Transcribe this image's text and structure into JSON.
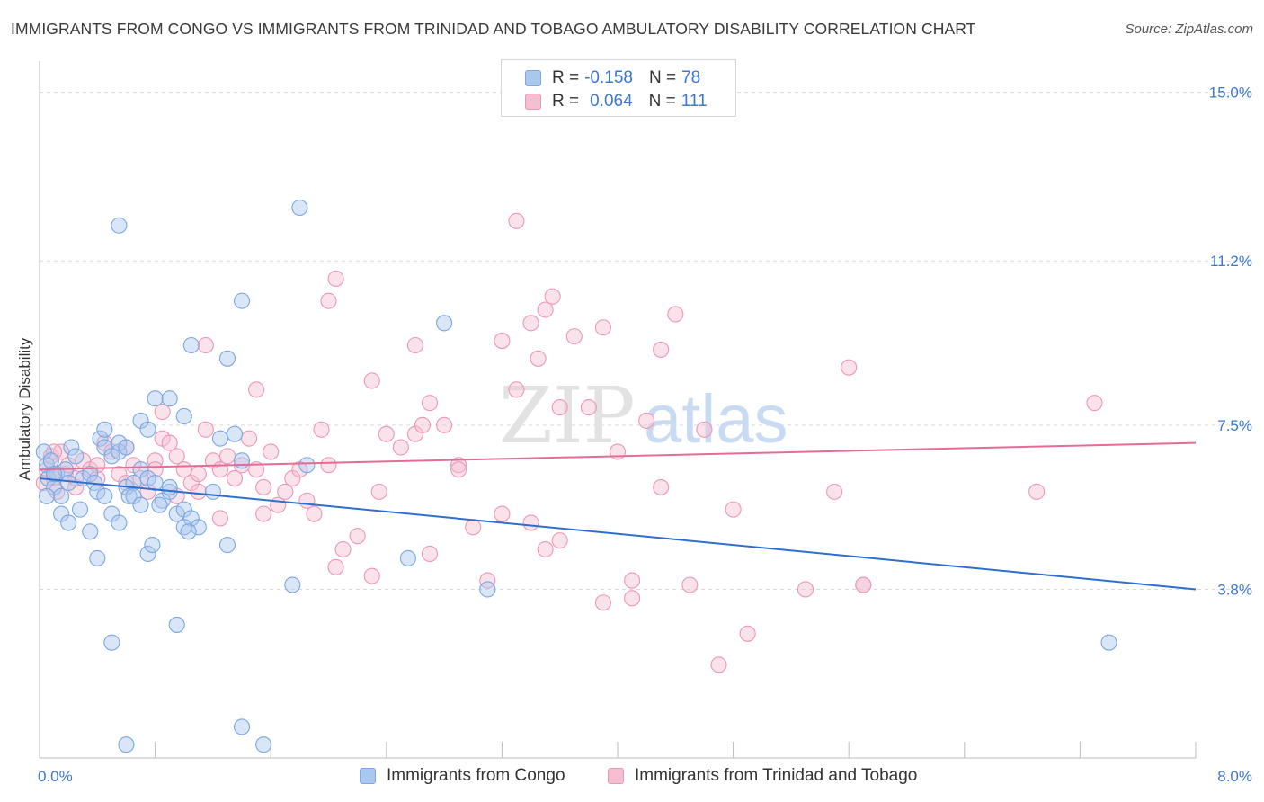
{
  "title": "IMMIGRANTS FROM CONGO VS IMMIGRANTS FROM TRINIDAD AND TOBAGO AMBULATORY DISABILITY CORRELATION CHART",
  "source": "Source: ZipAtlas.com",
  "watermark": {
    "zip": "ZIP",
    "atlas": "atlas"
  },
  "legend_top": [
    {
      "r_label": "R =",
      "r_value": "-0.158",
      "n_label": "N =",
      "n_value": "78"
    },
    {
      "r_label": "R =",
      "r_value": "0.064",
      "n_label": "N =",
      "n_value": "111"
    }
  ],
  "legend_bottom": [
    {
      "label": "Immigrants from Congo"
    },
    {
      "label": "Immigrants from Trinidad and Tobago"
    }
  ],
  "colors": {
    "blue_fill": "#aac8ee",
    "blue_stroke": "#7ba6e0",
    "blue_line": "#2e6fce",
    "pink_fill": "#f5bfd2",
    "pink_stroke": "#ec97b5",
    "pink_line": "#e46c97",
    "axis_label": "#3a78d4",
    "grid": "#d9d9d9"
  },
  "chart_data": {
    "type": "scatter",
    "title": "IMMIGRANTS FROM CONGO VS IMMIGRANTS FROM TRINIDAD AND TOBAGO AMBULATORY DISABILITY CORRELATION CHART",
    "xlabel": "",
    "ylabel": "Ambulatory Disability",
    "xlim": [
      0,
      8.0
    ],
    "ylim": [
      0,
      15.5
    ],
    "x_tick_labels": [
      "0.0%",
      "8.0%"
    ],
    "y_ticks": [
      3.8,
      7.5,
      11.2,
      15.0
    ],
    "y_tick_labels": [
      "3.8%",
      "7.5%",
      "11.2%",
      "15.0%"
    ],
    "grid": true,
    "legend_position": "top-center",
    "series": [
      {
        "name": "Immigrants from Congo",
        "r": -0.158,
        "n": 78,
        "trend": {
          "x": [
            0.0,
            8.0
          ],
          "y": [
            6.3,
            3.8
          ]
        },
        "points": [
          [
            0.03,
            6.9
          ],
          [
            0.05,
            6.6
          ],
          [
            0.06,
            6.3
          ],
          [
            0.08,
            6.7
          ],
          [
            0.1,
            6.1
          ],
          [
            0.12,
            6.4
          ],
          [
            0.15,
            5.9
          ],
          [
            0.18,
            6.5
          ],
          [
            0.2,
            6.2
          ],
          [
            0.22,
            7.0
          ],
          [
            0.25,
            6.8
          ],
          [
            0.3,
            6.3
          ],
          [
            0.35,
            6.4
          ],
          [
            0.38,
            6.2
          ],
          [
            0.4,
            6.0
          ],
          [
            0.42,
            7.2
          ],
          [
            0.45,
            7.0
          ],
          [
            0.5,
            6.8
          ],
          [
            0.55,
            6.9
          ],
          [
            0.6,
            6.1
          ],
          [
            0.62,
            5.9
          ],
          [
            0.65,
            6.2
          ],
          [
            0.7,
            6.5
          ],
          [
            0.75,
            6.3
          ],
          [
            0.8,
            6.2
          ],
          [
            0.85,
            5.8
          ],
          [
            0.9,
            6.0
          ],
          [
            0.95,
            5.5
          ],
          [
            1.0,
            5.6
          ],
          [
            1.05,
            5.4
          ],
          [
            1.1,
            5.2
          ],
          [
            1.2,
            6.0
          ],
          [
            0.15,
            5.5
          ],
          [
            0.2,
            5.3
          ],
          [
            0.28,
            5.6
          ],
          [
            0.35,
            5.1
          ],
          [
            0.4,
            4.5
          ],
          [
            0.45,
            5.9
          ],
          [
            0.5,
            5.5
          ],
          [
            0.55,
            5.3
          ],
          [
            0.65,
            5.9
          ],
          [
            0.7,
            5.7
          ],
          [
            0.75,
            4.6
          ],
          [
            0.78,
            4.8
          ],
          [
            0.83,
            5.7
          ],
          [
            0.9,
            6.1
          ],
          [
            1.0,
            5.2
          ],
          [
            1.03,
            5.1
          ],
          [
            0.45,
            7.4
          ],
          [
            0.55,
            7.1
          ],
          [
            0.6,
            7.0
          ],
          [
            0.7,
            7.6
          ],
          [
            0.75,
            7.4
          ],
          [
            0.8,
            8.1
          ],
          [
            0.9,
            8.1
          ],
          [
            1.0,
            7.7
          ],
          [
            1.25,
            7.2
          ],
          [
            1.35,
            7.3
          ],
          [
            1.4,
            6.7
          ],
          [
            0.55,
            12.0
          ],
          [
            1.8,
            12.4
          ],
          [
            1.4,
            10.3
          ],
          [
            1.05,
            9.3
          ],
          [
            1.3,
            9.0
          ],
          [
            2.8,
            9.8
          ],
          [
            0.05,
            5.9
          ],
          [
            0.1,
            6.4
          ],
          [
            1.3,
            4.8
          ],
          [
            1.75,
            3.9
          ],
          [
            2.55,
            4.5
          ],
          [
            3.1,
            3.8
          ],
          [
            0.95,
            3.0
          ],
          [
            0.5,
            2.6
          ],
          [
            0.6,
            0.3
          ],
          [
            1.4,
            0.7
          ],
          [
            1.55,
            0.3
          ],
          [
            7.4,
            2.6
          ],
          [
            1.85,
            6.6
          ]
        ]
      },
      {
        "name": "Immigrants from Trinidad and Tobago",
        "r": 0.064,
        "n": 111,
        "trend": {
          "x": [
            0.0,
            8.0
          ],
          "y": [
            6.5,
            7.1
          ]
        },
        "points": [
          [
            0.03,
            6.2
          ],
          [
            0.05,
            6.5
          ],
          [
            0.08,
            6.8
          ],
          [
            0.1,
            6.3
          ],
          [
            0.12,
            6.0
          ],
          [
            0.15,
            6.9
          ],
          [
            0.18,
            6.4
          ],
          [
            0.2,
            6.6
          ],
          [
            0.25,
            6.1
          ],
          [
            0.3,
            6.7
          ],
          [
            0.35,
            6.5
          ],
          [
            0.4,
            6.3
          ],
          [
            0.45,
            7.1
          ],
          [
            0.5,
            6.9
          ],
          [
            0.55,
            6.4
          ],
          [
            0.6,
            6.2
          ],
          [
            0.65,
            6.6
          ],
          [
            0.7,
            6.3
          ],
          [
            0.75,
            6.0
          ],
          [
            0.8,
            6.7
          ],
          [
            0.85,
            7.2
          ],
          [
            0.9,
            7.1
          ],
          [
            0.95,
            6.8
          ],
          [
            1.0,
            6.5
          ],
          [
            1.05,
            6.2
          ],
          [
            1.1,
            6.0
          ],
          [
            1.15,
            7.4
          ],
          [
            1.2,
            6.7
          ],
          [
            1.25,
            6.5
          ],
          [
            1.3,
            6.8
          ],
          [
            1.35,
            6.3
          ],
          [
            1.4,
            6.6
          ],
          [
            1.45,
            7.2
          ],
          [
            1.5,
            6.5
          ],
          [
            1.55,
            6.1
          ],
          [
            1.6,
            6.9
          ],
          [
            1.65,
            5.7
          ],
          [
            1.7,
            6.0
          ],
          [
            1.75,
            6.3
          ],
          [
            1.8,
            6.5
          ],
          [
            1.85,
            5.8
          ],
          [
            1.9,
            5.5
          ],
          [
            2.0,
            6.6
          ],
          [
            2.05,
            4.3
          ],
          [
            2.1,
            4.7
          ],
          [
            2.2,
            5.0
          ],
          [
            2.3,
            4.1
          ],
          [
            2.4,
            7.3
          ],
          [
            2.5,
            7.0
          ],
          [
            2.6,
            7.3
          ],
          [
            2.7,
            4.6
          ],
          [
            2.8,
            7.5
          ],
          [
            2.9,
            6.6
          ],
          [
            3.0,
            5.2
          ],
          [
            3.1,
            4.0
          ],
          [
            3.2,
            5.5
          ],
          [
            3.3,
            12.1
          ],
          [
            3.4,
            5.3
          ],
          [
            3.5,
            4.7
          ],
          [
            3.6,
            4.9
          ],
          [
            3.7,
            9.5
          ],
          [
            3.8,
            7.9
          ],
          [
            3.9,
            3.5
          ],
          [
            4.0,
            6.9
          ],
          [
            4.1,
            4.0
          ],
          [
            4.2,
            7.6
          ],
          [
            4.3,
            6.1
          ],
          [
            4.5,
            3.9
          ],
          [
            4.7,
            2.1
          ],
          [
            4.8,
            5.6
          ],
          [
            4.9,
            2.8
          ],
          [
            5.3,
            3.8
          ],
          [
            5.7,
            3.9
          ],
          [
            0.85,
            7.8
          ],
          [
            1.15,
            9.3
          ],
          [
            1.5,
            8.3
          ],
          [
            1.95,
            7.4
          ],
          [
            2.0,
            10.3
          ],
          [
            2.05,
            10.8
          ],
          [
            2.3,
            8.5
          ],
          [
            2.6,
            9.3
          ],
          [
            2.65,
            7.5
          ],
          [
            2.7,
            8.0
          ],
          [
            3.2,
            9.4
          ],
          [
            3.3,
            8.3
          ],
          [
            3.4,
            9.8
          ],
          [
            3.45,
            9.0
          ],
          [
            3.5,
            10.1
          ],
          [
            3.55,
            10.4
          ],
          [
            3.6,
            7.9
          ],
          [
            3.9,
            9.7
          ],
          [
            4.3,
            9.2
          ],
          [
            4.4,
            10.0
          ],
          [
            4.6,
            7.4
          ],
          [
            5.5,
            6.0
          ],
          [
            5.6,
            8.8
          ],
          [
            7.3,
            8.0
          ],
          [
            6.9,
            6.0
          ],
          [
            5.7,
            3.9
          ],
          [
            4.1,
            3.6
          ],
          [
            0.1,
            6.9
          ],
          [
            0.25,
            6.3
          ],
          [
            0.4,
            6.6
          ],
          [
            0.6,
            7.0
          ],
          [
            0.8,
            6.5
          ],
          [
            0.95,
            5.9
          ],
          [
            1.1,
            6.4
          ],
          [
            1.25,
            5.4
          ],
          [
            1.55,
            5.5
          ],
          [
            2.35,
            6.0
          ],
          [
            2.9,
            6.5
          ]
        ]
      }
    ]
  }
}
